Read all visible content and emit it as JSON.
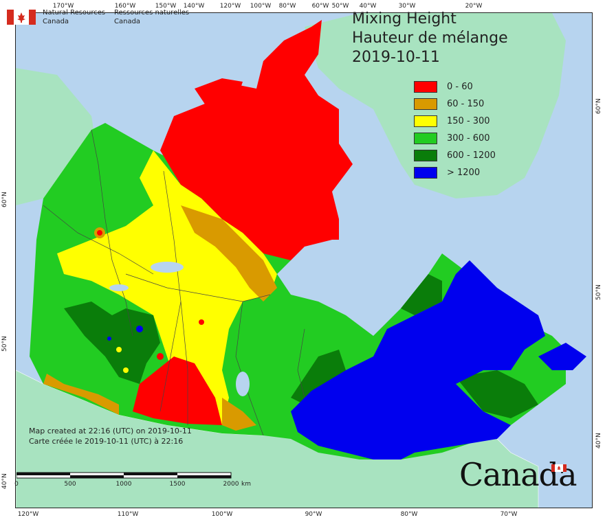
{
  "title": {
    "line1": "Mixing Height",
    "line2": "Hauteur de mélange",
    "date": "2019-10-11"
  },
  "agency": {
    "en_line1": "Natural Resources",
    "en_line2": "Canada",
    "fr_line1": "Ressources naturelles",
    "fr_line2": "Canada"
  },
  "legend": {
    "items": [
      {
        "label": "0 - 60",
        "color": "#ff0000"
      },
      {
        "label": "60 - 150",
        "color": "#d99a00"
      },
      {
        "label": "150 - 300",
        "color": "#ffff00"
      },
      {
        "label": "300 - 600",
        "color": "#22cc22"
      },
      {
        "label": "600 - 1200",
        "color": "#0a7d0a"
      },
      {
        "label": "> 1200",
        "color": "#0000ee"
      }
    ]
  },
  "credit": {
    "en": "Map created at 22:16 (UTC) on 2019-10-11",
    "fr": "Carte créée le 2019-10-11 (UTC) à 22:16"
  },
  "scale": {
    "ticks": [
      "0",
      "500",
      "1000",
      "1500",
      "2000"
    ],
    "unit": "km"
  },
  "wordmark": "Canada",
  "graticule": {
    "top": [
      "170°W",
      "160°W",
      "150°W",
      "140°W",
      "120°W",
      "100°W",
      "80°W",
      "60°W",
      "50°W",
      "40°W",
      "30°W",
      "20°W"
    ],
    "bottom": [
      "120°W",
      "110°W",
      "100°W",
      "90°W",
      "80°W",
      "70°W"
    ],
    "left": [
      "60°N",
      "50°N",
      "40°N"
    ],
    "right": [
      "60°N",
      "50°N",
      "40°N"
    ]
  },
  "colors": {
    "ocean": "#b7d4ef",
    "land_outside": "#a8e3c0"
  }
}
